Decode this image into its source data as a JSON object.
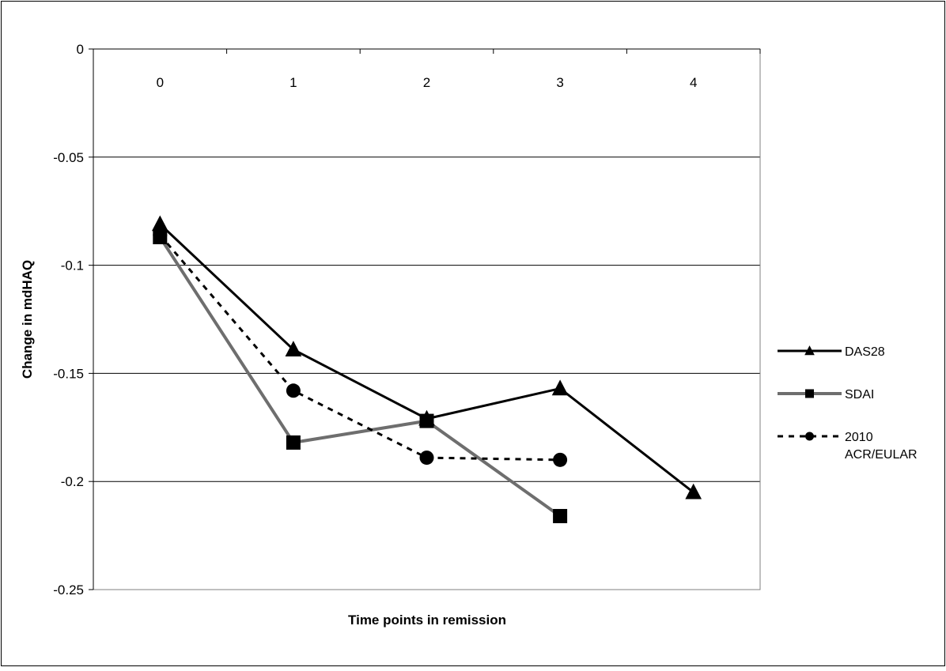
{
  "chart_data": {
    "type": "line",
    "title": "",
    "xlabel": "Time points in remission",
    "ylabel": "Change in mdHAQ",
    "categories": [
      "0",
      "1",
      "2",
      "3",
      "4"
    ],
    "yticks": [
      "0",
      "-0.05",
      "-0.1",
      "-0.15",
      "-0.2",
      "-0.25"
    ],
    "ylim": [
      -0.25,
      0
    ],
    "grid": "horizontal",
    "legend_position": "right",
    "x_axis_position": "top",
    "series": [
      {
        "name": "DAS28",
        "values": [
          -0.081,
          -0.139,
          -0.171,
          -0.157,
          -0.205
        ],
        "color": "#000000",
        "line_style": "solid",
        "marker": "triangle"
      },
      {
        "name": "SDAI",
        "values": [
          -0.087,
          -0.182,
          -0.172,
          -0.216,
          null
        ],
        "color": "#6e6e6e",
        "line_style": "solid",
        "marker": "square"
      },
      {
        "name": "2010 ACR/EULAR",
        "legend_lines": [
          "2010",
          "ACR/EULAR"
        ],
        "values": [
          -0.086,
          -0.158,
          -0.189,
          -0.19,
          null
        ],
        "color": "#000000",
        "line_style": "dashed",
        "marker": "circle"
      }
    ]
  }
}
